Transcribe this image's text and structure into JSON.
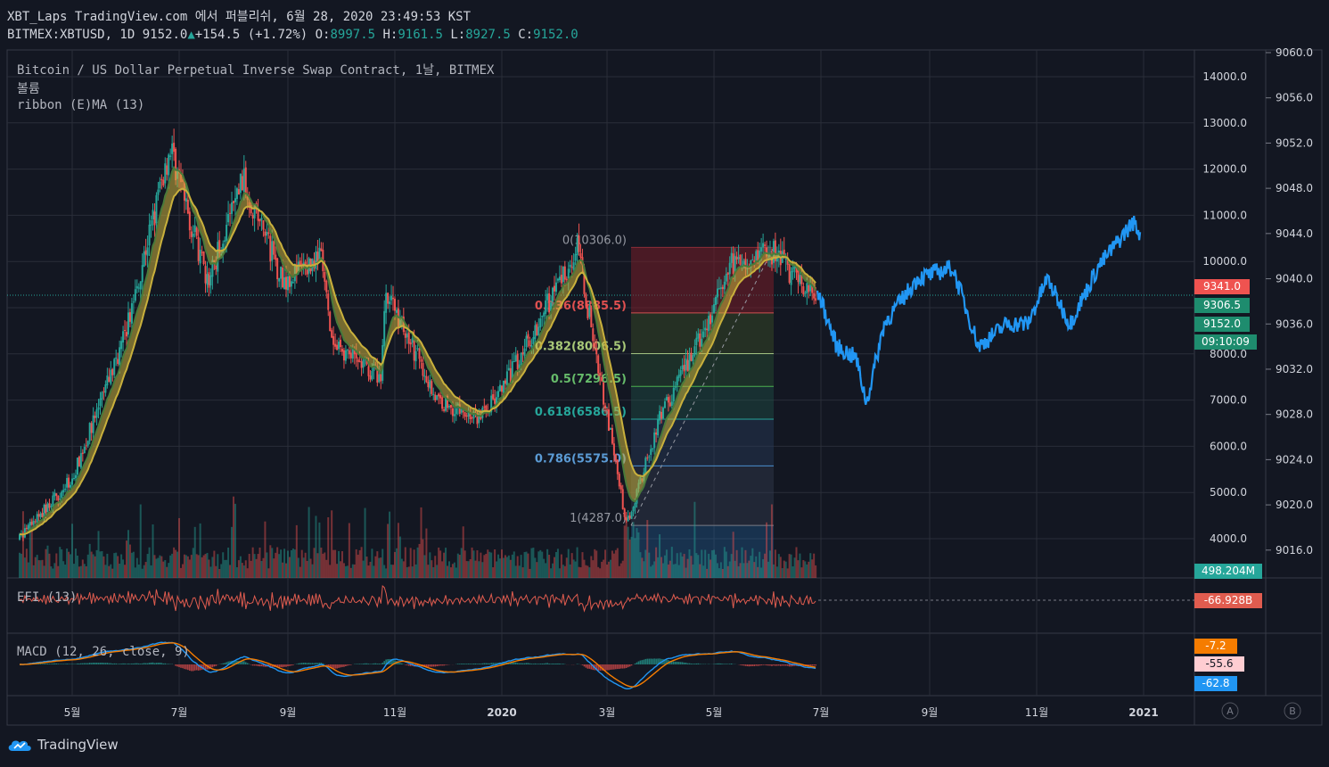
{
  "header": {
    "line1": "XBT_Laps TradingView.com 에서 퍼블리쉬, 6월 28, 2020 23:49:53 KST",
    "symbol": "BITMEX:XBTUSD, 1D",
    "last": "9152.0",
    "change": "+154.5 (+1.72%)",
    "o_label": "O:",
    "o": "8997.5",
    "h_label": "H:",
    "h": "9161.5",
    "l_label": "L:",
    "l": "8927.5",
    "c_label": "C:",
    "c": "9152.0"
  },
  "legends": {
    "title": "Bitcoin / US Dollar Perpetual Inverse Swap Contract, 1날, BITMEX",
    "volume": "볼륨",
    "ribbon": "ribbon (E)MA (13)",
    "efi": "EFI (13)",
    "macd": "MACD (12, 26, close, 9)"
  },
  "colors": {
    "bg": "#131722",
    "up": "#26a69a",
    "down": "#ef5350",
    "grid": "#2a2e39",
    "blue": "#2196f3",
    "ribbon_yellow": "#c9b03c",
    "ribbon_green": "#4a7a3a"
  },
  "price_boxes": [
    {
      "label": "9341.0",
      "color": "#ef5350"
    },
    {
      "label": "9306.5",
      "color": "#1e8c6e"
    },
    {
      "label": "9152.0",
      "color": "#1e8c6e"
    },
    {
      "label": "09:10:09",
      "color": "#1e8c6e"
    },
    {
      "label": "498.204M",
      "color": "#26a69a"
    },
    {
      "label": "-66.928B",
      "color": "#e05c4f"
    },
    {
      "label": "-7.2",
      "color": "#f57c00"
    },
    {
      "label": "-55.6",
      "color": "#ffcdd2"
    },
    {
      "label": "-62.8",
      "color": "#2196f3"
    }
  ],
  "scale_buttons": [
    "A",
    "B"
  ],
  "brand": "TradingView",
  "chart_data": [
    {
      "type": "candlestick",
      "pane": "main",
      "title": "Bitcoin / US Dollar Perpetual Inverse Swap Contract, 1날, BITMEX",
      "y_ticks": [
        4000,
        5000,
        6000,
        7000,
        8000,
        9000,
        10000,
        11000,
        12000,
        13000,
        14000
      ],
      "y_tick_labels": [
        "4000.0",
        "5000.0",
        "6000.0",
        "7000.0",
        "8000.0",
        "9000.0",
        "10000.0",
        "11000.0",
        "12000.0",
        "13000.0",
        "14000.0"
      ],
      "ylim": [
        3000,
        14400
      ],
      "x_tick_labels": [
        "5월",
        "7월",
        "9월",
        "11월",
        "2020",
        "3월",
        "5월",
        "7월",
        "9월",
        "11월",
        "2021"
      ],
      "fib_levels": [
        {
          "ratio": "0",
          "label": "0(10306.0)",
          "price": 10306.0
        },
        {
          "ratio": "0.236",
          "label": "0.236(8885.5)",
          "price": 8885.5
        },
        {
          "ratio": "0.382",
          "label": "0.382(8006.5)",
          "price": 8006.5
        },
        {
          "ratio": "0.5",
          "label": "0.5(7296.5)",
          "price": 7296.5
        },
        {
          "ratio": "0.618",
          "label": "0.618(6586.5)",
          "price": 6586.5
        },
        {
          "ratio": "0.786",
          "label": "0.786(5575.0)",
          "price": 5575.0
        },
        {
          "ratio": "1",
          "label": "1(4287.0)",
          "price": 4287.0
        }
      ],
      "path_points": [
        {
          "x": "2019-04",
          "y": 4000
        },
        {
          "x": "2019-05",
          "y": 5300
        },
        {
          "x": "2019-05-31",
          "y": 8400
        },
        {
          "x": "2019-06-26",
          "y": 12500
        },
        {
          "x": "2019-07-17",
          "y": 9500
        },
        {
          "x": "2019-08-06",
          "y": 11800
        },
        {
          "x": "2019-08-29",
          "y": 9600
        },
        {
          "x": "2019-09-20",
          "y": 10100
        },
        {
          "x": "2019-09-26",
          "y": 8200
        },
        {
          "x": "2019-10-24",
          "y": 7500
        },
        {
          "x": "2019-10-27",
          "y": 9400
        },
        {
          "x": "2019-11-25",
          "y": 7000
        },
        {
          "x": "2019-12-18",
          "y": 6600
        },
        {
          "x": "2020-01-01",
          "y": 7200
        },
        {
          "x": "2020-02-13",
          "y": 10300
        },
        {
          "x": "2020-03-12",
          "y": 4300
        },
        {
          "x": "2020-04-01",
          "y": 6700
        },
        {
          "x": "2020-04-30",
          "y": 8800
        },
        {
          "x": "2020-05-08",
          "y": 9900
        },
        {
          "x": "2020-06-01",
          "y": 10300
        },
        {
          "x": "2020-06-28",
          "y": 9152
        }
      ]
    },
    {
      "type": "line",
      "pane": "overlay",
      "y_tick_labels": [
        "9016.0",
        "9020.0",
        "9024.0",
        "9028.0",
        "9032.0",
        "9036.0",
        "9040.0",
        "9044.0",
        "9048.0",
        "9052.0",
        "9056.0",
        "9060.0"
      ],
      "ylim": [
        9013.6,
        9060.4
      ],
      "points": [
        {
          "x": "2020-06-29",
          "y": 9039
        },
        {
          "x": "2020-07-10",
          "y": 9034
        },
        {
          "x": "2020-07-21",
          "y": 9033
        },
        {
          "x": "2020-07-27",
          "y": 9029
        },
        {
          "x": "2020-08-06",
          "y": 9036
        },
        {
          "x": "2020-08-25",
          "y": 9040
        },
        {
          "x": "2020-09-14",
          "y": 9041
        },
        {
          "x": "2020-09-29",
          "y": 9034
        },
        {
          "x": "2020-10-15",
          "y": 9036
        },
        {
          "x": "2020-10-27",
          "y": 9036
        },
        {
          "x": "2020-11-07",
          "y": 9040
        },
        {
          "x": "2020-11-20",
          "y": 9036
        },
        {
          "x": "2020-12-06",
          "y": 9041
        },
        {
          "x": "2020-12-26",
          "y": 9045
        },
        {
          "x": "2020-12-30",
          "y": 9044
        }
      ]
    },
    {
      "type": "bar",
      "pane": "volume",
      "last_label": "498.204M"
    },
    {
      "type": "line",
      "pane": "efi",
      "legend": "EFI (13)",
      "last_label": "-66.928B"
    },
    {
      "type": "line",
      "pane": "macd",
      "legend": "MACD (12, 26, close, 9)",
      "last_labels": [
        "-7.2",
        "-55.6",
        "-62.8"
      ]
    }
  ]
}
